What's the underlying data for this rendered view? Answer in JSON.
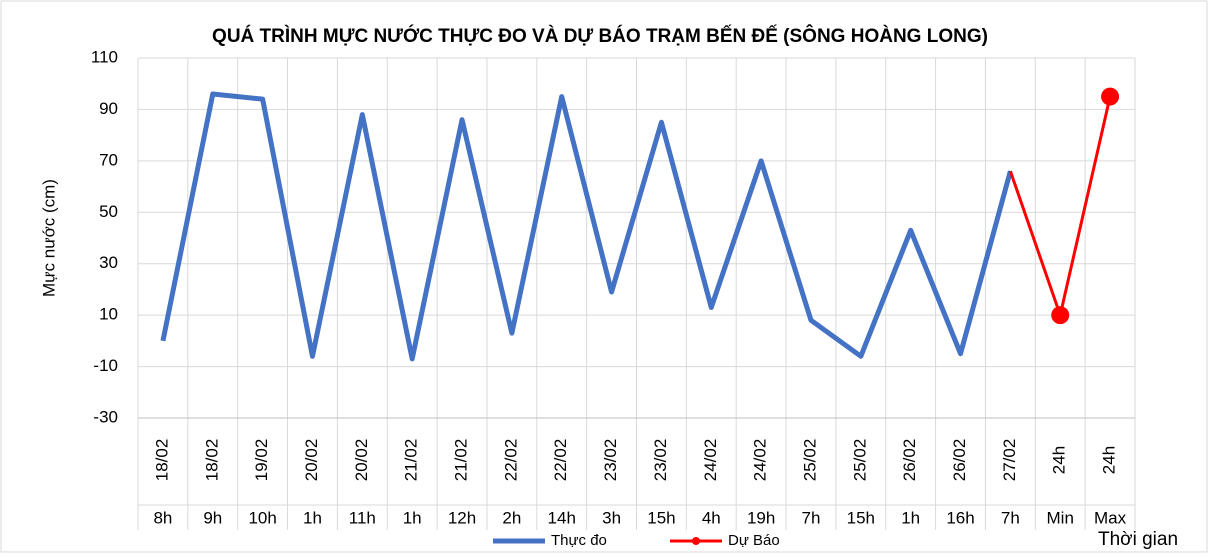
{
  "chart_data": {
    "type": "line",
    "title": "QUÁ TRÌNH MỰC NƯỚC THỰC ĐO VÀ DỰ BÁO TRẠM BẾN ĐẾ (SÔNG HOÀNG LONG)",
    "ylabel": "Mực nước (cm)",
    "xlabel": "Thời gian",
    "dates": [
      "18/02",
      "18/02",
      "19/02",
      "20/02",
      "20/02",
      "21/02",
      "21/02",
      "22/02",
      "22/02",
      "23/02",
      "23/02",
      "24/02",
      "24/02",
      "25/02",
      "25/02",
      "26/02",
      "26/02",
      "27/02",
      "24h",
      "24h"
    ],
    "categories": [
      "8h",
      "9h",
      "10h",
      "1h",
      "11h",
      "1h",
      "12h",
      "2h",
      "14h",
      "3h",
      "15h",
      "4h",
      "19h",
      "7h",
      "15h",
      "1h",
      "16h",
      "7h",
      "Min",
      "Max"
    ],
    "series": [
      {
        "name": "Thực đo",
        "color": "#4472c4",
        "values": [
          0,
          96,
          94,
          -6,
          88,
          -7,
          86,
          3,
          95,
          19,
          85,
          13,
          70,
          8,
          -6,
          43,
          -5,
          66,
          null,
          null
        ]
      },
      {
        "name": "Dự Báo",
        "color": "#ff0000",
        "values": [
          null,
          null,
          null,
          null,
          null,
          null,
          null,
          null,
          null,
          null,
          null,
          null,
          null,
          null,
          null,
          null,
          null,
          66,
          10,
          95
        ]
      }
    ],
    "ylim": [
      -30,
      110
    ],
    "yticks": [
      -30,
      -10,
      10,
      30,
      50,
      70,
      90,
      110
    ],
    "grid": true,
    "legend": "bottom"
  }
}
